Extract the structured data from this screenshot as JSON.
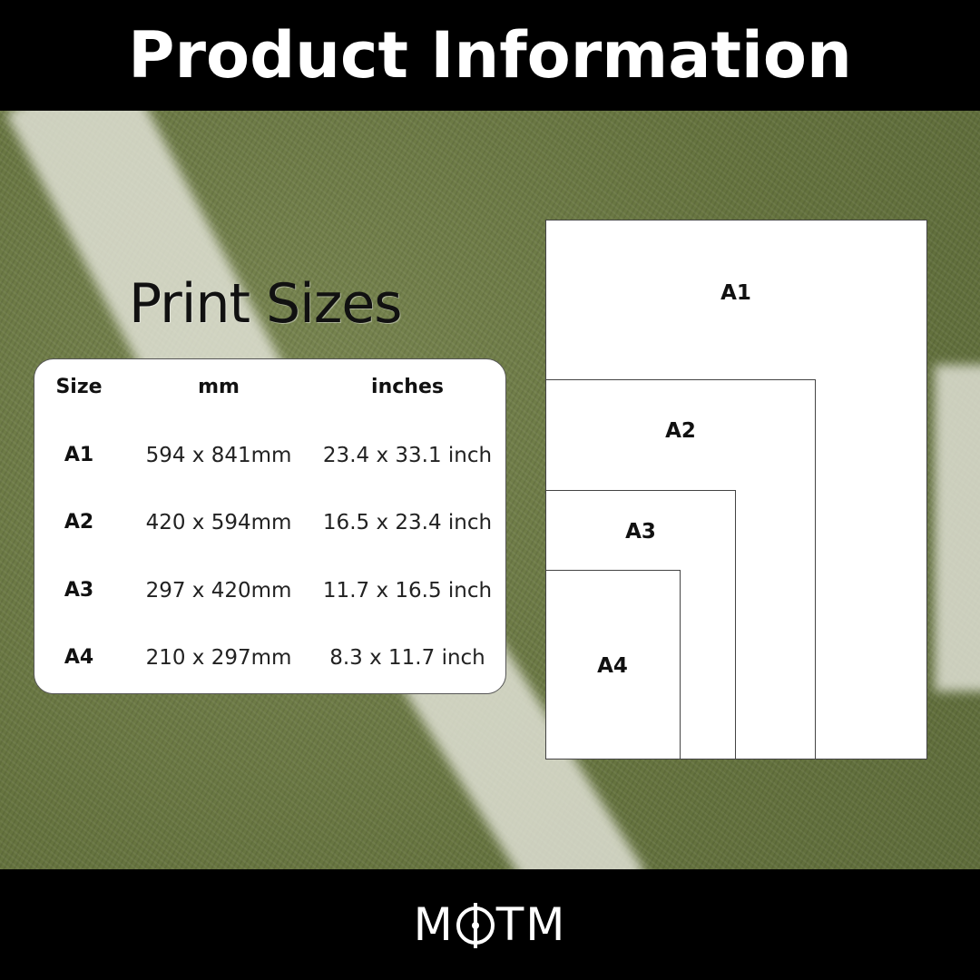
{
  "header": {
    "title": "Product Information"
  },
  "section_title": "Print Sizes",
  "table": {
    "headers": [
      "Size",
      "mm",
      "inches"
    ],
    "rows": [
      {
        "size": "A1",
        "mm": "594 x 841mm",
        "inches": "23.4 x 33.1 inch"
      },
      {
        "size": "A2",
        "mm": "420 x 594mm",
        "inches": "16.5 x 23.4 inch"
      },
      {
        "size": "A3",
        "mm": "297 x 420mm",
        "inches": "11.7 x 16.5 inch"
      },
      {
        "size": "A4",
        "mm": "210 x 297mm",
        "inches": "8.3 x 11.7 inch"
      }
    ]
  },
  "diagram": {
    "labels": [
      "A1",
      "A2",
      "A3",
      "A4"
    ]
  },
  "footer": {
    "logo": "MOTM",
    "logo_left": "M",
    "logo_right": "TM"
  },
  "colors": {
    "bars": "#000000",
    "background": "#66743f",
    "card": "#ffffff"
  }
}
